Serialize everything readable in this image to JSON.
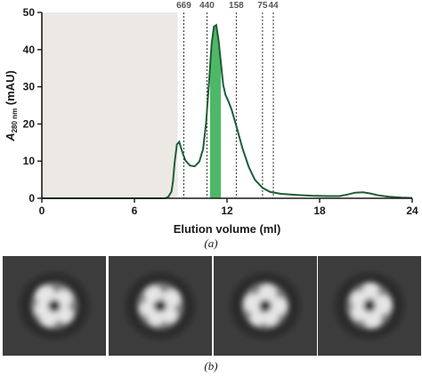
{
  "chart_data": {
    "type": "line",
    "xlabel": "Elution volume (ml)",
    "ylabel_main": "A",
    "ylabel_sub": "280 nm",
    "ylabel_unit": " (mAU)",
    "xlim": [
      0,
      24
    ],
    "ylim": [
      0,
      50
    ],
    "x_ticks": [
      0,
      6,
      12,
      18,
      24
    ],
    "y_ticks": [
      0,
      10,
      20,
      30,
      40,
      50
    ],
    "void_region": [
      0,
      8.8
    ],
    "shaded_fraction": [
      10.9,
      11.6
    ],
    "markers": [
      {
        "label": "669",
        "x": 9.2
      },
      {
        "label": "440",
        "x": 10.7
      },
      {
        "label": "158",
        "x": 12.6
      },
      {
        "label": "75",
        "x": 14.3
      },
      {
        "label": "44",
        "x": 15.0
      }
    ],
    "series": [
      {
        "x": [
          0,
          8.0,
          8.2,
          8.4,
          8.5,
          8.6,
          8.75,
          8.9,
          9.1,
          9.3,
          9.6,
          9.9,
          10.2,
          10.45,
          10.65,
          10.85,
          11.0,
          11.15,
          11.3,
          11.45,
          11.6,
          11.75,
          11.9,
          12.1,
          12.3,
          12.6,
          13.0,
          13.4,
          13.8,
          14.3,
          14.8,
          15.5,
          16.5,
          17.5,
          18.5,
          19.3,
          19.8,
          20.3,
          20.8,
          21.3,
          21.8,
          22.5,
          23.3,
          24.0
        ],
        "y": [
          0,
          0,
          0.4,
          1.8,
          4.5,
          9.5,
          14.5,
          15.2,
          12.5,
          10.2,
          8.8,
          8.6,
          9.8,
          13.2,
          20.5,
          32.5,
          41.5,
          46.2,
          46.6,
          42.5,
          36.5,
          30.5,
          27.8,
          26.0,
          23.8,
          19.5,
          13.5,
          8.5,
          5.0,
          2.8,
          1.7,
          1.2,
          0.9,
          0.7,
          0.6,
          0.6,
          1.0,
          1.5,
          1.6,
          1.3,
          0.8,
          0.4,
          0.2,
          0.1
        ]
      }
    ],
    "caption_a": "(a)",
    "caption_b": "(b)"
  },
  "class_averages": [
    {
      "label": "2D class average 1"
    },
    {
      "label": "2D class average 2"
    },
    {
      "label": "2D class average 3"
    },
    {
      "label": "2D class average 4"
    }
  ],
  "colors": {
    "trace": "#1e5d36",
    "fraction": "#4fb868",
    "void": "#ece9e5",
    "tile_bg": "#3c3c3c"
  }
}
